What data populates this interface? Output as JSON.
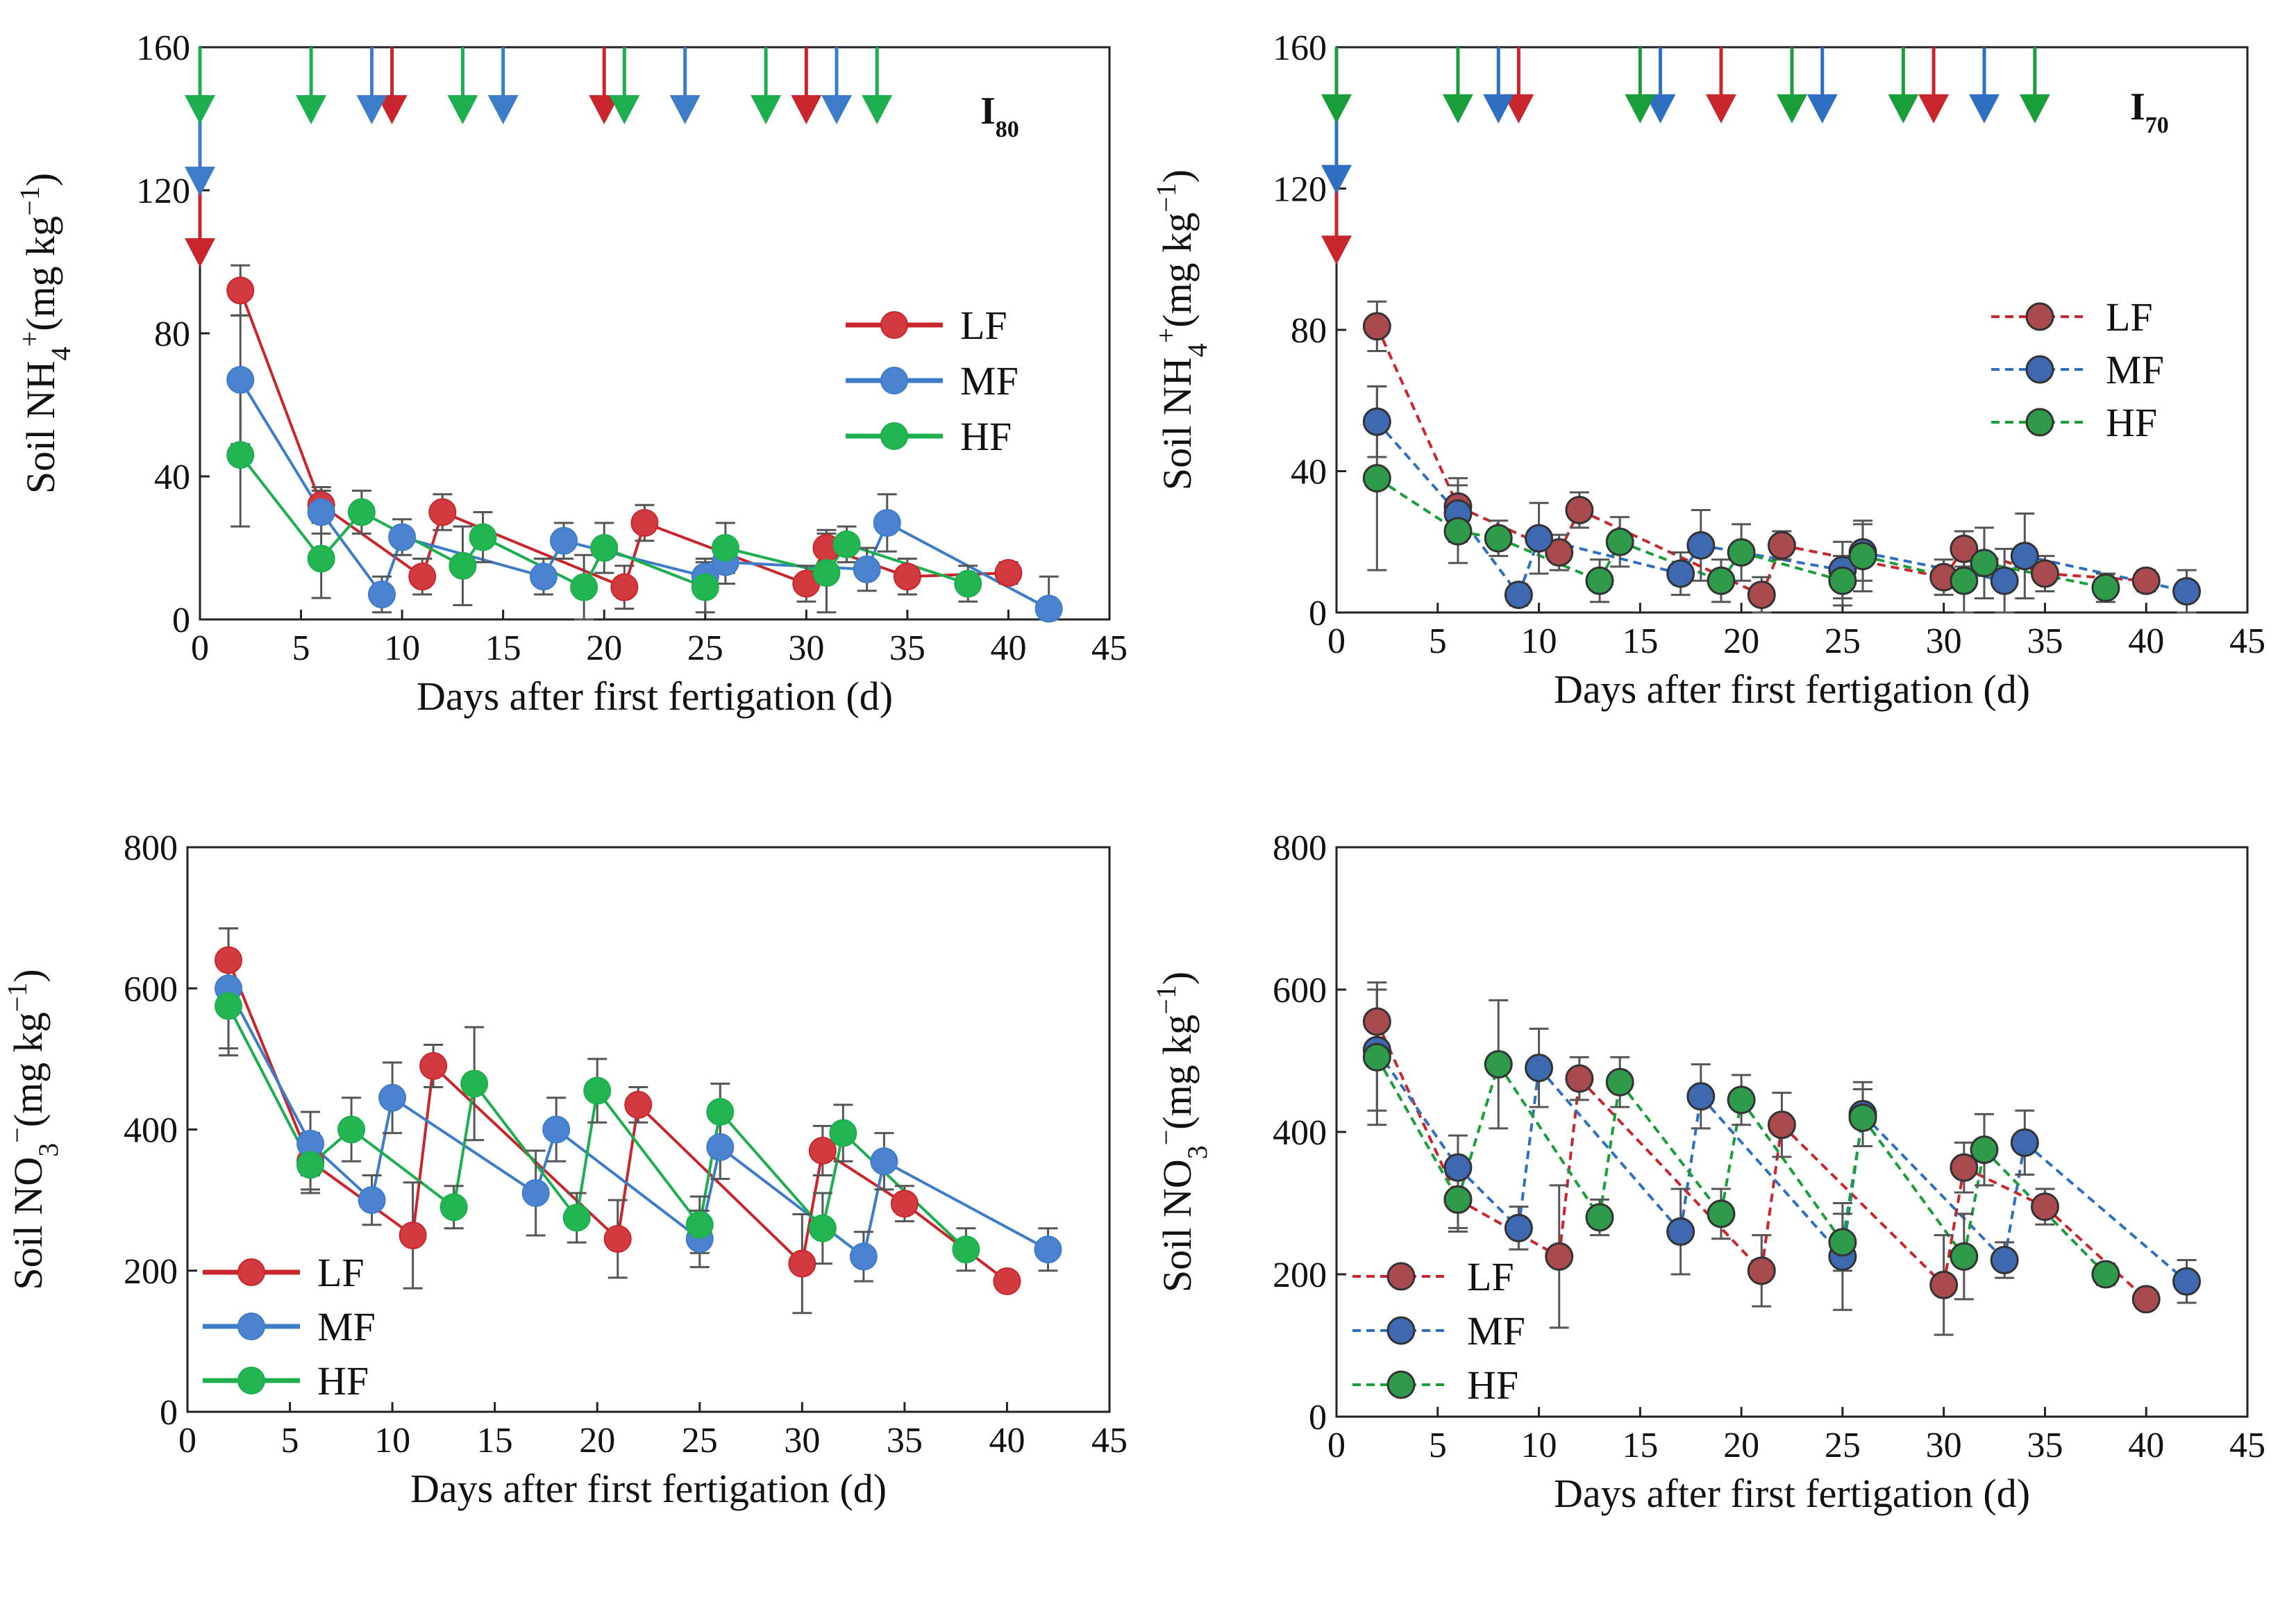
{
  "chart_data": [
    {
      "id": "nh4_I80",
      "type": "line",
      "panel_label": {
        "main": "I",
        "sub": "80"
      },
      "xlabel": "Days after first fertigation (d)",
      "ylabel": {
        "pre": "Soil NH",
        "sub": "4",
        "sup": "+",
        "post": "(mg kg",
        "unit_sup": "−1",
        "end": ")"
      },
      "xlim": [
        0,
        45
      ],
      "ylim": [
        0,
        160
      ],
      "xticks": [
        0,
        5,
        10,
        15,
        20,
        25,
        30,
        35,
        40,
        45
      ],
      "yticks": [
        0,
        40,
        80,
        120,
        160
      ],
      "line_style": "solid",
      "legend_position": "right",
      "series": [
        {
          "name": "LF",
          "color": "#c8262c",
          "fill": "#d13b3f",
          "x": [
            2,
            6,
            11,
            12,
            21,
            22,
            30,
            31,
            35,
            40
          ],
          "y": [
            92,
            32,
            12,
            30,
            9,
            27,
            10,
            20,
            12,
            13
          ],
          "err": [
            7,
            5,
            5,
            5,
            6,
            5,
            5,
            5,
            5,
            3
          ],
          "arrows": [
            0,
            9.5,
            20,
            30
          ]
        },
        {
          "name": "MF",
          "color": "#3d7cc9",
          "fill": "#4c83d1",
          "x": [
            2,
            6,
            9,
            10,
            17,
            18,
            25,
            26,
            33,
            34,
            42
          ],
          "y": [
            67,
            30,
            7,
            23,
            12,
            22,
            12,
            16,
            14,
            27,
            3
          ],
          "err": [
            18,
            6,
            5,
            5,
            5,
            5,
            5,
            6,
            6,
            8,
            9
          ],
          "arrows": [
            0,
            8.5,
            15,
            24,
            31.5
          ]
        },
        {
          "name": "HF",
          "color": "#1cae4f",
          "fill": "#22b552",
          "x": [
            2,
            6,
            8,
            13,
            14,
            19,
            20,
            25,
            26,
            31,
            32,
            38
          ],
          "y": [
            46,
            17,
            30,
            15,
            23,
            9,
            20,
            9,
            20,
            13,
            21,
            10
          ],
          "err": [
            20,
            11,
            6,
            11,
            7,
            9,
            7,
            7,
            7,
            11,
            5,
            5
          ],
          "arrows": [
            0,
            5.5,
            13,
            21,
            28,
            33.5
          ]
        }
      ]
    },
    {
      "id": "nh4_I70",
      "type": "line",
      "panel_label": {
        "main": "I",
        "sub": "70"
      },
      "xlabel": "Days after first fertigation (d)",
      "ylabel": {
        "pre": "Soil NH",
        "sub": "4",
        "sup": "+",
        "post": "(mg kg",
        "unit_sup": "−1",
        "end": ")"
      },
      "xlim": [
        0,
        45
      ],
      "ylim": [
        0,
        160
      ],
      "xticks": [
        0,
        5,
        10,
        15,
        20,
        25,
        30,
        35,
        40,
        45
      ],
      "yticks": [
        0,
        40,
        80,
        120,
        160
      ],
      "line_style": "dashed",
      "legend_position": "top-right",
      "series": [
        {
          "name": "LF",
          "color": "#c8262c",
          "fill": "#a84a4e",
          "x": [
            2,
            6,
            11,
            12,
            21,
            22,
            30,
            31,
            35,
            40
          ],
          "y": [
            81,
            30,
            17,
            29,
            5,
            19,
            10,
            18,
            11,
            9
          ],
          "err": [
            7,
            8,
            5,
            5,
            5,
            4,
            5,
            5,
            5,
            3
          ],
          "arrows": [
            0,
            9,
            19,
            29.5
          ]
        },
        {
          "name": "MF",
          "color": "#2f6fc2",
          "fill": "#3e68b0",
          "x": [
            2,
            6,
            9,
            10,
            17,
            18,
            25,
            26,
            33,
            34,
            42
          ],
          "y": [
            54,
            28,
            5,
            21,
            11,
            19,
            12,
            17,
            9,
            16,
            6
          ],
          "err": [
            10,
            8,
            3,
            10,
            6,
            10,
            8,
            8,
            9,
            12,
            6
          ],
          "arrows": [
            0,
            8,
            16,
            24,
            32
          ]
        },
        {
          "name": "HF",
          "color": "#1a9e3a",
          "fill": "#2e9a4a",
          "x": [
            2,
            6,
            8,
            13,
            14,
            19,
            20,
            25,
            26,
            31,
            32,
            38
          ],
          "y": [
            38,
            23,
            21,
            9,
            20,
            9,
            17,
            9,
            16,
            9,
            14,
            7
          ],
          "err": [
            26,
            9,
            5,
            6,
            7,
            6,
            8,
            7,
            10,
            9,
            10,
            4
          ],
          "arrows": [
            0,
            6,
            15,
            22.5,
            28,
            34.5
          ]
        }
      ]
    },
    {
      "id": "no3_I80",
      "type": "line",
      "xlabel": "Days after first fertigation (d)",
      "ylabel": {
        "pre": "Soil NO",
        "sub": "3",
        "sup": "−",
        "post": "(mg kg",
        "unit_sup": "−1",
        "end": ")"
      },
      "xlim": [
        0,
        45
      ],
      "ylim": [
        0,
        800
      ],
      "xticks": [
        0,
        5,
        10,
        15,
        20,
        25,
        30,
        35,
        40,
        45
      ],
      "yticks": [
        0,
        200,
        400,
        600,
        800
      ],
      "line_style": "solid",
      "legend_position": "bottom-left",
      "series": [
        {
          "name": "LF",
          "color": "#c8262c",
          "fill": "#d13b3f",
          "x": [
            2,
            6,
            11,
            12,
            21,
            22,
            30,
            31,
            35,
            40
          ],
          "y": [
            640,
            355,
            250,
            490,
            245,
            435,
            210,
            370,
            295,
            185
          ],
          "err": [
            45,
            40,
            75,
            30,
            55,
            25,
            70,
            35,
            25,
            10
          ],
          "arrows": []
        },
        {
          "name": "MF",
          "color": "#3d7cc9",
          "fill": "#4c83d1",
          "x": [
            2,
            6,
            9,
            10,
            17,
            18,
            25,
            26,
            33,
            34,
            42
          ],
          "y": [
            600,
            380,
            300,
            445,
            310,
            400,
            245,
            375,
            220,
            355,
            230
          ],
          "err": [
            85,
            45,
            35,
            50,
            60,
            45,
            40,
            45,
            35,
            40,
            30
          ],
          "arrows": []
        },
        {
          "name": "HF",
          "color": "#1cae4f",
          "fill": "#22b552",
          "x": [
            2,
            6,
            8,
            13,
            14,
            19,
            20,
            25,
            26,
            31,
            32,
            38
          ],
          "y": [
            575,
            350,
            400,
            290,
            465,
            275,
            455,
            265,
            425,
            260,
            395,
            230
          ],
          "err": [
            70,
            40,
            45,
            30,
            80,
            35,
            45,
            40,
            40,
            50,
            40,
            30
          ],
          "arrows": []
        }
      ]
    },
    {
      "id": "no3_I70",
      "type": "line",
      "xlabel": "Days after first fertigation (d)",
      "ylabel": {
        "pre": "Soil NO",
        "sub": "3",
        "sup": "−",
        "post": "(mg kg",
        "unit_sup": "−1",
        "end": ")"
      },
      "xlim": [
        0,
        45
      ],
      "ylim": [
        0,
        800
      ],
      "xticks": [
        0,
        5,
        10,
        15,
        20,
        25,
        30,
        35,
        40,
        45
      ],
      "yticks": [
        0,
        200,
        400,
        600,
        800
      ],
      "line_style": "dashed",
      "legend_position": "bottom-left",
      "series": [
        {
          "name": "LF",
          "color": "#c8262c",
          "fill": "#a84a4e",
          "x": [
            2,
            6,
            11,
            12,
            21,
            22,
            30,
            31,
            35,
            40
          ],
          "y": [
            555,
            305,
            225,
            475,
            205,
            410,
            185,
            350,
            295,
            165
          ],
          "err": [
            55,
            40,
            100,
            30,
            50,
            45,
            70,
            35,
            25,
            10
          ],
          "arrows": []
        },
        {
          "name": "MF",
          "color": "#2f6fc2",
          "fill": "#3e68b0",
          "x": [
            2,
            6,
            9,
            10,
            17,
            18,
            25,
            26,
            33,
            34,
            42
          ],
          "y": [
            515,
            350,
            265,
            490,
            260,
            450,
            225,
            425,
            220,
            385,
            190
          ],
          "err": [
            85,
            45,
            30,
            55,
            60,
            45,
            75,
            45,
            25,
            45,
            30
          ],
          "arrows": []
        },
        {
          "name": "HF",
          "color": "#1a9e3a",
          "fill": "#2e9a4a",
          "x": [
            2,
            6,
            8,
            13,
            14,
            19,
            20,
            25,
            26,
            31,
            32,
            38
          ],
          "y": [
            505,
            305,
            495,
            280,
            470,
            285,
            445,
            245,
            420,
            225,
            375,
            200
          ],
          "err": [
            95,
            45,
            90,
            25,
            35,
            35,
            35,
            40,
            40,
            60,
            50,
            15
          ],
          "arrows": []
        }
      ]
    }
  ]
}
